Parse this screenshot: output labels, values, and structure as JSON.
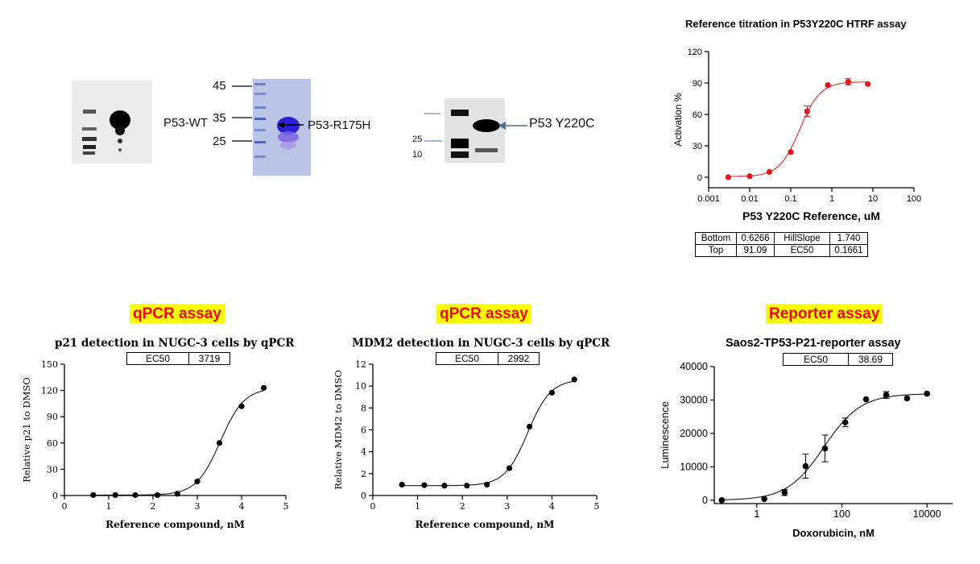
{
  "gels": {
    "wt": {
      "label": "P53-WT"
    },
    "r175h": {
      "label": "P53-R175H",
      "markers": [
        "45",
        "35",
        "25"
      ]
    },
    "y220c": {
      "label": "P53 Y220C",
      "markers": [
        "25",
        "10"
      ]
    }
  },
  "charts": [
    {
      "id": "htrf",
      "title": "Reference titration in P53Y220C HTRF assay",
      "xlabel": "P53 Y220C Reference, uM",
      "ylabel": "Activation %",
      "param_table": [
        [
          "Bottom",
          "0.6266",
          "HillSlope",
          "1.740"
        ],
        [
          "Top",
          "91.09",
          "EC50",
          "0.1661"
        ]
      ]
    },
    {
      "id": "p21",
      "banner": "qPCR assay",
      "title": "p21 detection in NUGC-3 cells by qPCR",
      "ec50_label": "EC50",
      "ec50_value": "3719",
      "xlabel": "Reference compound, nM",
      "ylabel": "Relative p21 to DMSO"
    },
    {
      "id": "mdm2",
      "banner": "qPCR assay",
      "title": "MDM2 detection in NUGC-3 cells by qPCR",
      "ec50_label": "EC50",
      "ec50_value": "2992",
      "xlabel": "Reference compound, nM",
      "ylabel": "Relative MDM2 to DMSO"
    },
    {
      "id": "reporter",
      "banner": "Reporter assay",
      "title": "Saos2-TP53-P21-reporter assay",
      "ec50_label": "EC50",
      "ec50_value": "38.69",
      "xlabel": "Doxorubicin, nM",
      "ylabel": "Luminescence"
    }
  ],
  "chart_data": [
    {
      "type": "scatter",
      "x_scale": "log",
      "xlim": [
        0.001,
        100
      ],
      "ylim": [
        -10,
        120
      ],
      "xticks": [
        "0.001",
        "0.01",
        "0.1",
        "1",
        "10",
        "100"
      ],
      "yticks": [
        0,
        30,
        60,
        90,
        120
      ],
      "marker_color": "#e8141b",
      "x": [
        0.003,
        0.01,
        0.03,
        0.1,
        0.25,
        0.8,
        2.5,
        7.5
      ],
      "y": [
        0,
        1,
        5,
        24,
        63,
        88,
        91,
        89
      ],
      "err": [
        0,
        0,
        0,
        0,
        5,
        0,
        3,
        0
      ],
      "fit": {
        "bottom": 0.6266,
        "top": 91.09,
        "ec50": 0.1661,
        "hill": 1.74
      }
    },
    {
      "type": "scatter",
      "xlim": [
        0,
        5
      ],
      "ylim": [
        0,
        150
      ],
      "xticks": [
        0,
        1,
        2,
        3,
        4,
        5
      ],
      "yticks": [
        0,
        30,
        60,
        90,
        120,
        150
      ],
      "x": [
        0.65,
        1.15,
        1.6,
        2.1,
        2.55,
        3.0,
        3.5,
        4.0,
        4.5
      ],
      "y": [
        0.5,
        0.5,
        0.5,
        0.5,
        2,
        16,
        60,
        102,
        123
      ]
    },
    {
      "type": "scatter",
      "xlim": [
        0,
        5
      ],
      "ylim": [
        0,
        12
      ],
      "xticks": [
        0,
        1,
        2,
        3,
        4,
        5
      ],
      "yticks": [
        0,
        2,
        4,
        6,
        8,
        10,
        12
      ],
      "x": [
        0.65,
        1.15,
        1.6,
        2.1,
        2.55,
        3.05,
        3.5,
        4.0,
        4.5
      ],
      "y": [
        1.0,
        0.95,
        0.9,
        0.9,
        1.0,
        2.5,
        6.3,
        9.4,
        10.6
      ]
    },
    {
      "type": "scatter",
      "x_scale": "log",
      "xlim": [
        0.1,
        40000
      ],
      "ylim": [
        -1000,
        40000
      ],
      "xticks": [
        "1",
        "100",
        "10000"
      ],
      "yticks": [
        0,
        10000,
        20000,
        30000,
        40000
      ],
      "x": [
        0.15,
        1.5,
        4.5,
        14,
        40,
        120,
        370,
        1100,
        3400,
        10000
      ],
      "y": [
        0,
        400,
        2300,
        10200,
        15500,
        23300,
        30200,
        31500,
        30500,
        31900
      ],
      "err": [
        0,
        0,
        900,
        3600,
        4000,
        1300,
        0,
        1000,
        0,
        0
      ]
    }
  ]
}
